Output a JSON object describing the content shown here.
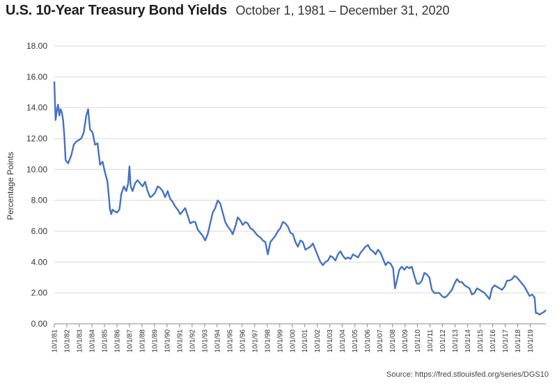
{
  "title": "U.S. 10-Year Treasury Bond Yields",
  "subtitle": "October 1, 1981 – December 31, 2020",
  "source": "Source: https://fred.stlouisfed.org/series/DGS10",
  "chart_data": {
    "type": "line",
    "ylabel": "Percentage Points",
    "xlabel": "",
    "ylim": [
      0,
      18
    ],
    "yticks": [
      "0.00",
      "2.00",
      "4.00",
      "6.00",
      "8.00",
      "10.00",
      "12.00",
      "14.00",
      "16.00",
      "18.00"
    ],
    "xlim": [
      1981.75,
      2021.0
    ],
    "grid": true,
    "legend": "none",
    "line_color": "#4472c4",
    "x_tick_labels": [
      "10/1/81",
      "10/1/82",
      "10/1/83",
      "10/1/84",
      "10/1/85",
      "10/1/86",
      "10/1/87",
      "10/1/88",
      "10/1/89",
      "10/1/90",
      "10/1/91",
      "10/1/92",
      "10/1/93",
      "10/1/94",
      "10/1/95",
      "10/1/96",
      "10/1/97",
      "10/1/98",
      "10/1/99",
      "10/1/00",
      "10/1/01",
      "10/1/02",
      "10/1/03",
      "10/1/04",
      "10/1/05",
      "10/1/06",
      "10/1/07",
      "10/1/08",
      "10/1/09",
      "10/1/10",
      "10/1/11",
      "10/1/12",
      "10/1/13",
      "10/1/14",
      "10/1/15",
      "10/1/16",
      "10/1/17",
      "10/1/18",
      "10/1/19"
    ],
    "series": [
      {
        "x": [
          1981.75,
          1981.85,
          1981.95,
          1982.05,
          1982.15,
          1982.25,
          1982.35,
          1982.45,
          1982.55,
          1982.65,
          1982.75,
          1982.85,
          1982.95,
          1983.1,
          1983.3,
          1983.5,
          1983.7,
          1983.9,
          1984.1,
          1984.3,
          1984.45,
          1984.6,
          1984.8,
          1985.0,
          1985.2,
          1985.4,
          1985.6,
          1985.8,
          1986.0,
          1986.1,
          1986.2,
          1986.3,
          1986.4,
          1986.55,
          1986.75,
          1986.95,
          1987.1,
          1987.3,
          1987.5,
          1987.65,
          1987.75,
          1987.85,
          1988.0,
          1988.2,
          1988.4,
          1988.6,
          1988.8,
          1989.0,
          1989.2,
          1989.4,
          1989.6,
          1989.8,
          1990.0,
          1990.2,
          1990.4,
          1990.6,
          1990.8,
          1991.0,
          1991.2,
          1991.4,
          1991.6,
          1991.8,
          1992.0,
          1992.2,
          1992.4,
          1992.6,
          1992.8,
          1993.0,
          1993.2,
          1993.4,
          1993.6,
          1993.8,
          1994.0,
          1994.2,
          1994.4,
          1994.6,
          1994.8,
          1995.0,
          1995.2,
          1995.4,
          1995.6,
          1995.8,
          1996.0,
          1996.2,
          1996.4,
          1996.6,
          1996.8,
          1997.0,
          1997.2,
          1997.4,
          1997.6,
          1997.8,
          1998.0,
          1998.2,
          1998.4,
          1998.6,
          1998.8,
          1999.0,
          1999.2,
          1999.4,
          1999.6,
          1999.8,
          2000.0,
          2000.2,
          2000.4,
          2000.6,
          2000.8,
          2001.0,
          2001.2,
          2001.4,
          2001.6,
          2001.8,
          2002.0,
          2002.2,
          2002.4,
          2002.6,
          2002.8,
          2003.0,
          2003.2,
          2003.4,
          2003.6,
          2003.8,
          2004.0,
          2004.2,
          2004.4,
          2004.6,
          2004.8,
          2005.0,
          2005.2,
          2005.4,
          2005.6,
          2005.8,
          2006.0,
          2006.2,
          2006.4,
          2006.6,
          2006.8,
          2007.0,
          2007.2,
          2007.4,
          2007.6,
          2007.8,
          2008.0,
          2008.2,
          2008.4,
          2008.6,
          2008.8,
          2008.95,
          2009.1,
          2009.3,
          2009.5,
          2009.7,
          2009.9,
          2010.1,
          2010.3,
          2010.5,
          2010.7,
          2010.9,
          2011.1,
          2011.3,
          2011.5,
          2011.7,
          2011.9,
          2012.1,
          2012.3,
          2012.5,
          2012.7,
          2012.9,
          2013.1,
          2013.3,
          2013.5,
          2013.7,
          2013.9,
          2014.1,
          2014.3,
          2014.5,
          2014.7,
          2014.9,
          2015.1,
          2015.3,
          2015.5,
          2015.7,
          2015.9,
          2016.1,
          2016.3,
          2016.5,
          2016.7,
          2016.9,
          2017.1,
          2017.3,
          2017.5,
          2017.7,
          2017.9,
          2018.1,
          2018.3,
          2018.5,
          2018.7,
          2018.9,
          2019.1,
          2019.3,
          2019.5,
          2019.7,
          2019.9,
          2020.1,
          2020.2,
          2020.3,
          2020.5,
          2020.7,
          2020.9,
          2021.0
        ],
        "values": [
          15.7,
          13.2,
          13.8,
          14.2,
          13.5,
          13.9,
          13.7,
          13.2,
          12.2,
          10.6,
          10.5,
          10.4,
          10.6,
          10.9,
          11.6,
          11.8,
          11.9,
          12.0,
          12.4,
          13.5,
          13.9,
          12.6,
          12.4,
          11.6,
          11.7,
          10.3,
          10.5,
          9.8,
          9.2,
          8.3,
          7.4,
          7.1,
          7.4,
          7.3,
          7.2,
          7.4,
          8.4,
          8.9,
          8.6,
          9.1,
          10.2,
          8.9,
          8.6,
          9.1,
          9.3,
          9.1,
          8.9,
          9.2,
          8.6,
          8.2,
          8.3,
          8.5,
          8.9,
          8.8,
          8.6,
          8.2,
          8.6,
          8.1,
          7.9,
          7.6,
          7.4,
          7.1,
          7.3,
          7.5,
          7.0,
          6.5,
          6.6,
          6.6,
          6.1,
          5.9,
          5.7,
          5.4,
          5.8,
          6.5,
          7.2,
          7.5,
          8.0,
          7.8,
          7.2,
          6.6,
          6.3,
          6.1,
          5.8,
          6.3,
          6.9,
          6.7,
          6.4,
          6.6,
          6.5,
          6.2,
          6.1,
          5.9,
          5.7,
          5.6,
          5.4,
          5.3,
          4.5,
          5.3,
          5.5,
          5.7,
          6.0,
          6.2,
          6.6,
          6.5,
          6.3,
          5.9,
          5.8,
          5.3,
          5.0,
          5.4,
          5.3,
          4.8,
          4.9,
          5.0,
          5.2,
          4.8,
          4.4,
          4.0,
          3.8,
          4.0,
          4.1,
          4.4,
          4.3,
          4.1,
          4.5,
          4.7,
          4.4,
          4.2,
          4.3,
          4.2,
          4.5,
          4.4,
          4.3,
          4.6,
          4.8,
          5.0,
          5.1,
          4.8,
          4.7,
          4.5,
          4.8,
          4.6,
          4.2,
          3.8,
          4.0,
          3.9,
          3.6,
          2.3,
          2.8,
          3.5,
          3.7,
          3.5,
          3.7,
          3.6,
          3.7,
          3.1,
          2.6,
          2.6,
          2.8,
          3.3,
          3.2,
          3.0,
          2.2,
          2.0,
          2.0,
          2.0,
          1.8,
          1.7,
          1.8,
          2.0,
          2.2,
          2.6,
          2.9,
          2.7,
          2.7,
          2.5,
          2.4,
          2.3,
          1.9,
          2.0,
          2.3,
          2.2,
          2.1,
          2.0,
          1.8,
          1.6,
          2.3,
          2.5,
          2.4,
          2.3,
          2.2,
          2.4,
          2.8,
          2.8,
          2.9,
          3.1,
          3.0,
          2.8,
          2.6,
          2.4,
          2.1,
          1.8,
          1.9,
          1.7,
          0.7,
          0.7,
          0.6,
          0.7,
          0.8,
          0.9
        ]
      }
    ]
  }
}
